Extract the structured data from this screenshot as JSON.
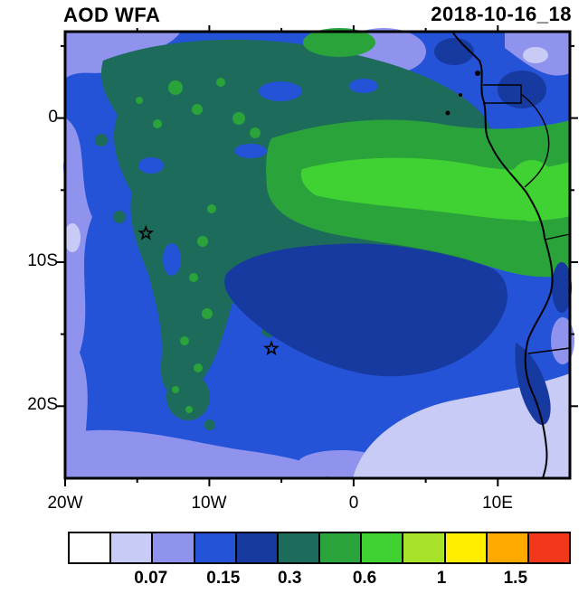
{
  "header": {
    "title": "AOD WFA",
    "datetime": "2018-10-16_18"
  },
  "map": {
    "lat_ticks": [
      {
        "label": "0",
        "lat": 0
      },
      {
        "label": "10S",
        "lat": -10
      },
      {
        "label": "20S",
        "lat": -20
      }
    ],
    "lon_ticks": [
      {
        "label": "20W",
        "lon": -20
      },
      {
        "label": "10W",
        "lon": -10
      },
      {
        "label": "0",
        "lon": 0
      },
      {
        "label": "10E",
        "lon": 10
      }
    ]
  },
  "colorbar": {
    "colors": [
      "#ffffff",
      "#c9cbf7",
      "#9093ee",
      "#2453d8",
      "#173aa0",
      "#1d6b5a",
      "#2aa33b",
      "#40d232",
      "#a8e32a",
      "#ffee00",
      "#ffa800",
      "#f2371b"
    ],
    "labels": [
      "0.07",
      "0.15",
      "0.3",
      "0.6",
      "1",
      "1.5"
    ]
  },
  "chart_data": {
    "type": "heatmap",
    "title": "AOD WFA",
    "time_label": "2018-10-16_18",
    "x_axis": {
      "tick_labels": [
        "20W",
        "10W",
        "0",
        "10E"
      ],
      "lon_range": [
        -20,
        15
      ]
    },
    "y_axis": {
      "tick_labels": [
        "0",
        "10S",
        "20S"
      ],
      "lat_range": [
        -25,
        6
      ]
    },
    "colorbar_tick_labels": [
      "0.07",
      "0.15",
      "0.3",
      "0.6",
      "1",
      "1.5"
    ],
    "palette": [
      "#ffffff",
      "#c9cbf7",
      "#9093ee",
      "#2453d8",
      "#173aa0",
      "#1d6b5a",
      "#2aa33b",
      "#40d232",
      "#a8e32a",
      "#ffee00",
      "#ffa800",
      "#f2371b"
    ],
    "markers": [
      {
        "symbol": "star",
        "lon": -14.4,
        "lat": -8.0
      },
      {
        "symbol": "star",
        "lon": -5.7,
        "lat": -16.0
      }
    ],
    "field_summary": {
      "description": "Filled-contour aerosol optical depth field over the southeast Atlantic and west-central Africa; green maximum band near 2S-8S east of 5W, dark-blue lobe near 10S-17S, low values (lavender) in the southeast corner, light periwinkle along western and southern edges, African coastline outlined at right.",
      "grid_lons": [
        -18,
        -12,
        -6,
        0,
        6,
        12
      ],
      "grid_lats": [
        4,
        -2,
        -8,
        -14,
        -20,
        -24
      ],
      "approx_aod": [
        [
          0.3,
          0.35,
          0.4,
          0.4,
          0.2,
          0.15
        ],
        [
          0.2,
          0.35,
          0.5,
          0.5,
          0.5,
          0.6
        ],
        [
          0.12,
          0.3,
          0.35,
          0.25,
          0.3,
          0.5
        ],
        [
          0.12,
          0.2,
          0.25,
          0.25,
          0.25,
          0.2
        ],
        [
          0.2,
          0.2,
          0.2,
          0.07,
          0.07,
          0.1
        ],
        [
          0.1,
          0.15,
          0.1,
          0.07,
          0.07,
          0.1
        ]
      ]
    }
  }
}
